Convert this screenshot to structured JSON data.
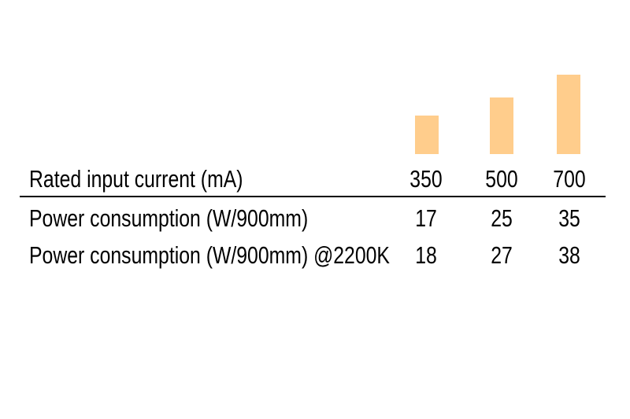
{
  "page": {
    "background": "#ffffff",
    "text_color": "#000000",
    "divider_color": "#000000"
  },
  "chart_data": {
    "type": "bar",
    "title": "",
    "categories": [
      "350",
      "500",
      "700"
    ],
    "xlabel": "Rated input current (mA)",
    "ylabel": "Power consumption (W/900mm)",
    "series": [
      {
        "name": "Power consumption (W/900mm)",
        "values": [
          17,
          25,
          35
        ]
      },
      {
        "name": "Power consumption (W/900mm) @2200K",
        "values": [
          18,
          27,
          38
        ]
      }
    ],
    "bar_color": "#ffcd8c",
    "grid": false,
    "legend": "none",
    "axes_shown": false
  },
  "table": {
    "header": {
      "label": "Rated input current (mA)",
      "columns": [
        "350",
        "500",
        "700"
      ]
    },
    "rows": [
      {
        "label": "Power consumption (W/900mm)",
        "values": [
          "17",
          "25",
          "35"
        ]
      },
      {
        "label": "Power consumption (W/900mm) @2200K",
        "values": [
          "18",
          "27",
          "38"
        ]
      }
    ]
  }
}
